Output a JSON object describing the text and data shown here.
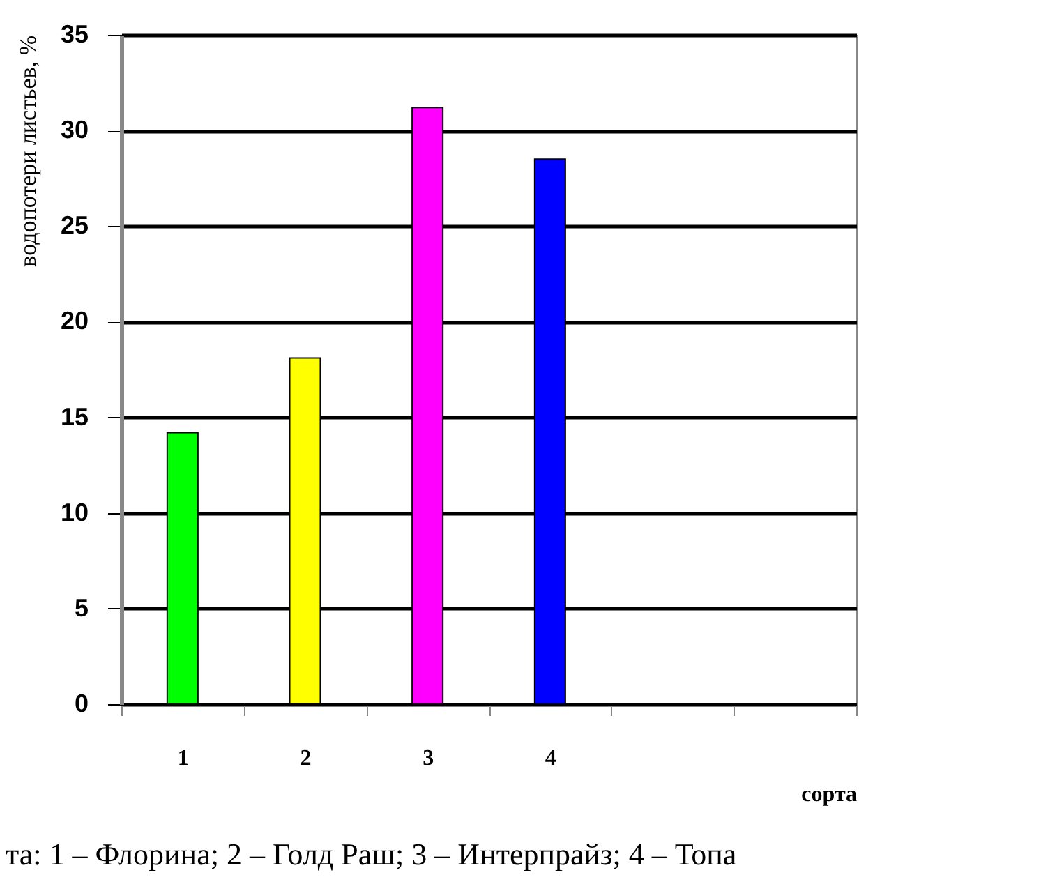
{
  "chart_data": {
    "type": "bar",
    "xlabel": "сорта",
    "ylabel": "водопотери листьев, %",
    "categories": [
      "1",
      "2",
      "3",
      "4",
      null,
      null
    ],
    "values": [
      14.2,
      18.1,
      31.2,
      28.5,
      null,
      null
    ],
    "colors": [
      "#00ff00",
      "#ffff00",
      "#ff00ff",
      "#0000ff",
      "#ffffff",
      "#ffffff"
    ],
    "ylim": [
      0,
      35
    ],
    "yticks": [
      0,
      5,
      10,
      15,
      20,
      25,
      30,
      35
    ],
    "grid": "y",
    "annotations": [
      "та: 1 – Флорина; 2 – Голд Раш; 3 – Интерпрайз; 4 – Топа"
    ]
  }
}
